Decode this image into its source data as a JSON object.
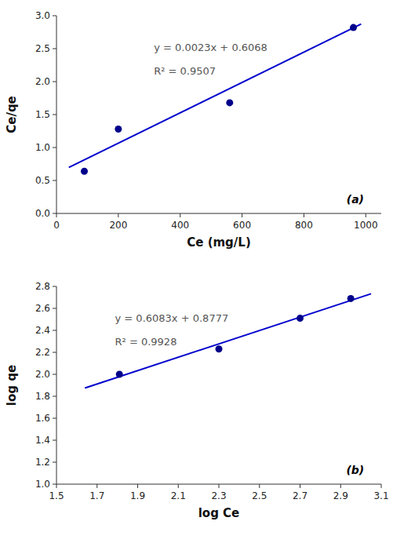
{
  "chart_data": [
    {
      "type": "scatter",
      "xlabel": "Ce (mg/L)",
      "ylabel": "Ce/qe",
      "annotations": [
        "y = 0.0023x + 0.6068",
        "R² = 0.9507",
        "(a)"
      ],
      "series": [
        {
          "type": "line",
          "color": "#0000CD",
          "x": [
            40,
            985
          ],
          "values": [
            0.6988,
            2.8723
          ]
        },
        {
          "type": "scatter",
          "color": "#00008B",
          "x": [
            90,
            200,
            560,
            960
          ],
          "values": [
            0.64,
            1.28,
            1.68,
            2.82
          ]
        }
      ],
      "xlim": [
        0,
        1050
      ],
      "ylim": [
        0,
        3.0
      ],
      "xticks": [
        0,
        200,
        400,
        600,
        800,
        1000
      ],
      "yticks": [
        {
          "value": 0,
          "label": "0.0"
        },
        0.5,
        {
          "value": 1.0,
          "label": "1.0"
        },
        1.5,
        {
          "value": 2.0,
          "label": "2.0"
        },
        2.5,
        {
          "value": 3.0,
          "label": "3.0"
        }
      ]
    },
    {
      "type": "scatter",
      "xlabel": "log Ce",
      "ylabel": "log qe",
      "annotations": [
        "y = 0.6083x + 0.8777",
        "R² = 0.9928",
        "(b)"
      ],
      "series": [
        {
          "type": "line",
          "color": "#0000CD",
          "x": [
            1.64,
            3.05
          ],
          "values": [
            1.875312,
            2.733015
          ]
        },
        {
          "type": "scatter",
          "color": "#00008B",
          "x": [
            1.81,
            2.3,
            2.7,
            2.95
          ],
          "values": [
            2.0,
            2.23,
            2.51,
            2.69
          ]
        }
      ],
      "xlim": [
        1.5,
        3.1
      ],
      "ylim": [
        1.0,
        2.8
      ],
      "xticks": [
        1.5,
        1.7,
        1.9,
        2.1,
        2.3,
        2.5,
        2.7,
        2.9,
        3.1
      ],
      "yticks": [
        {
          "value": 1.0,
          "label": "1.0"
        },
        1.2,
        1.4,
        1.6,
        1.8,
        {
          "value": 2.0,
          "label": "2.0"
        },
        2.2,
        2.4,
        2.6,
        2.8
      ]
    }
  ]
}
